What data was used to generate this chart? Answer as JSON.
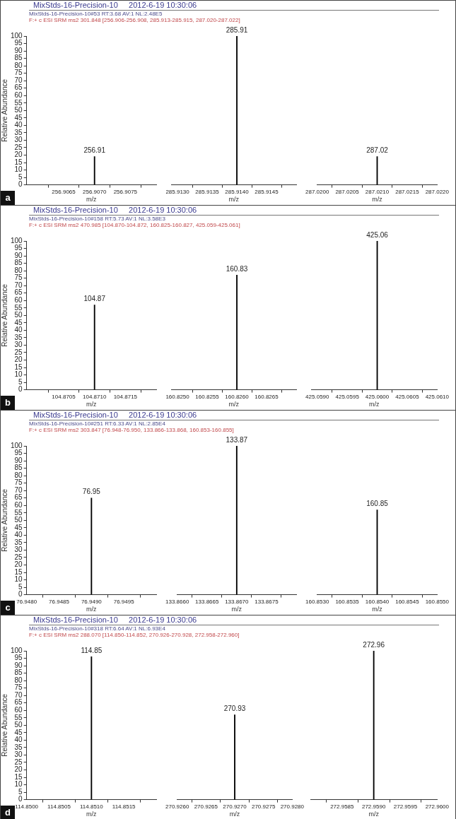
{
  "chart_data": [
    {
      "type": "bar",
      "title": "MixStds-16-Precision-10     2012-6-19 10:30:06",
      "subtitle": "MixStds-16-Precision-10#53 RT:3.68 AV:1 NL:2.48E5\nF:+ c ESI SRM ms2 301.848 [256.906-256.908, 285.913-285.915, 287.020-287.022]",
      "ylabel": "Relative Abundance",
      "xlabel": "m/z",
      "x": [
        256.907
      ],
      "values": [
        19
      ],
      "color": "#000000",
      "xlim": [
        256.9059,
        256.908
      ],
      "xticks": [
        256.9065,
        {
          "value": 256.907,
          "label": "256.9070"
        },
        256.9075
      ],
      "ylim": [
        0,
        100
      ],
      "yticks": [
        0,
        5,
        10,
        15,
        20,
        25,
        30,
        35,
        40,
        45,
        50,
        55,
        60,
        65,
        70,
        75,
        80,
        85,
        90,
        95,
        100
      ],
      "annotations": [
        {
          "text": "256.91",
          "x": 256.907,
          "y": 19
        },
        "a"
      ]
    },
    {
      "type": "bar",
      "xlabel": "m/z",
      "x": [
        285.914
      ],
      "values": [
        100
      ],
      "color": "#000000",
      "xlim": [
        285.9129,
        285.915
      ],
      "xticks": [
        {
          "value": 285.913,
          "label": "285.9130"
        },
        285.9135,
        {
          "value": 285.914,
          "label": "285.9140"
        },
        285.9145
      ],
      "ylim": [
        0,
        100
      ],
      "tick_labels": "x",
      "annotations": [
        {
          "text": "285.91",
          "x": 285.914,
          "y": 100
        }
      ]
    },
    {
      "type": "bar",
      "xlabel": "m/z",
      "x": [
        287.021
      ],
      "values": [
        19
      ],
      "color": "#000000",
      "xlim": [
        287.02,
        287.022
      ],
      "xticks": [
        {
          "value": 287.02,
          "label": "287.0200"
        },
        287.0205,
        {
          "value": 287.021,
          "label": "287.0210"
        },
        287.0215,
        {
          "value": 287.022,
          "label": "287.0220"
        }
      ],
      "ylim": [
        0,
        100
      ],
      "tick_labels": "x",
      "annotations": [
        {
          "text": "287.02",
          "x": 287.021,
          "y": 19
        }
      ]
    },
    {
      "type": "bar",
      "title": "MixStds-16-Precision-10     2012-6-19 10:30:06",
      "subtitle": "MixStds-16-Precision-10#158 RT:5.73 AV:1 NL:3.58E3\nF:+ c ESI SRM ms2 470.985 [104.870-104.872, 160.825-160.827, 425.059-425.061]",
      "ylabel": "Relative Abundance",
      "xlabel": "m/z",
      "x": [
        104.871
      ],
      "values": [
        57
      ],
      "color": "#000000",
      "xlim": [
        104.8699,
        104.872
      ],
      "xticks": [
        104.8705,
        {
          "value": 104.871,
          "label": "104.8710"
        },
        104.8715
      ],
      "ylim": [
        0,
        100
      ],
      "yticks": [
        0,
        5,
        10,
        15,
        20,
        25,
        30,
        35,
        40,
        45,
        50,
        55,
        60,
        65,
        70,
        75,
        80,
        85,
        90,
        95,
        100
      ],
      "annotations": [
        {
          "text": "104.87",
          "x": 104.871,
          "y": 57
        },
        "b"
      ]
    },
    {
      "type": "bar",
      "xlabel": "m/z",
      "x": [
        160.826
      ],
      "values": [
        77
      ],
      "color": "#000000",
      "xlim": [
        160.8249,
        160.827
      ],
      "xticks": [
        {
          "value": 160.825,
          "label": "160.8250"
        },
        160.8255,
        {
          "value": 160.826,
          "label": "160.8260"
        },
        160.8265
      ],
      "ylim": [
        0,
        100
      ],
      "tick_labels": "x",
      "annotations": [
        {
          "text": "160.83",
          "x": 160.826,
          "y": 77
        }
      ]
    },
    {
      "type": "bar",
      "xlabel": "m/z",
      "x": [
        425.06
      ],
      "values": [
        100
      ],
      "color": "#000000",
      "xlim": [
        425.0589,
        425.061
      ],
      "xticks": [
        {
          "value": 425.059,
          "label": "425.0590"
        },
        425.0595,
        {
          "value": 425.06,
          "label": "425.0600"
        },
        425.0605,
        {
          "value": 425.061,
          "label": "425.0610"
        }
      ],
      "ylim": [
        0,
        100
      ],
      "tick_labels": "x",
      "annotations": [
        {
          "text": "425.06",
          "x": 425.06,
          "y": 100
        }
      ]
    },
    {
      "type": "bar",
      "title": "MixStds-16-Precision-10     2012-6-19 10:30:06",
      "subtitle": "MixStds-16-Precision-10#251 RT:6.33 AV:1 NL:2.85E4\nF:+ c ESI SRM ms2 303.847 [76.948-76.950, 133.866-133.868, 160.853-160.855]",
      "ylabel": "Relative Abundance",
      "xlabel": "m/z",
      "x": [
        76.949
      ],
      "values": [
        65
      ],
      "color": "#000000",
      "xlim": [
        76.948,
        76.95
      ],
      "xticks": [
        {
          "value": 76.948,
          "label": "76.9480"
        },
        76.9485,
        {
          "value": 76.949,
          "label": "76.9490"
        },
        76.9495
      ],
      "ylim": [
        0,
        100
      ],
      "yticks": [
        0,
        5,
        10,
        15,
        20,
        25,
        30,
        35,
        40,
        45,
        50,
        55,
        60,
        65,
        70,
        75,
        80,
        85,
        90,
        95,
        100
      ],
      "annotations": [
        {
          "text": "76.95",
          "x": 76.949,
          "y": 65
        },
        "c"
      ]
    },
    {
      "type": "bar",
      "xlabel": "m/z",
      "x": [
        133.867
      ],
      "values": [
        100
      ],
      "color": "#000000",
      "xlim": [
        133.866,
        133.868
      ],
      "xticks": [
        {
          "value": 133.866,
          "label": "133.8660"
        },
        133.8665,
        {
          "value": 133.867,
          "label": "133.8670"
        },
        133.8675
      ],
      "ylim": [
        0,
        100
      ],
      "tick_labels": "x",
      "annotations": [
        {
          "text": "133.87",
          "x": 133.867,
          "y": 100
        }
      ]
    },
    {
      "type": "bar",
      "xlabel": "m/z",
      "x": [
        160.854
      ],
      "values": [
        57
      ],
      "color": "#000000",
      "xlim": [
        160.853,
        160.855
      ],
      "xticks": [
        {
          "value": 160.853,
          "label": "160.8530"
        },
        160.8535,
        {
          "value": 160.854,
          "label": "160.8540"
        },
        160.8545,
        {
          "value": 160.855,
          "label": "160.8550"
        }
      ],
      "ylim": [
        0,
        100
      ],
      "tick_labels": "x",
      "annotations": [
        {
          "text": "160.85",
          "x": 160.854,
          "y": 57
        }
      ]
    },
    {
      "type": "bar",
      "title": "MixStds-16-Precision-10     2012-6-19 10:30:06",
      "subtitle": "MixStds-16-Precision-10#318 RT:6.64 AV:1 NL:6.93E4\nF:+ c ESI SRM ms2 288.070 [114.850-114.852, 270.926-270.928, 272.958-272.960]",
      "ylabel": "Relative Abundance",
      "xlabel": "m/z",
      "x": [
        114.851
      ],
      "values": [
        96
      ],
      "color": "#000000",
      "xlim": [
        114.85,
        114.852
      ],
      "xticks": [
        {
          "value": 114.85,
          "label": "114.8500"
        },
        114.8505,
        {
          "value": 114.851,
          "label": "114.8510"
        },
        114.8515
      ],
      "ylim": [
        0,
        100
      ],
      "yticks": [
        0,
        5,
        10,
        15,
        20,
        25,
        30,
        35,
        40,
        45,
        50,
        55,
        60,
        65,
        70,
        75,
        80,
        85,
        90,
        95,
        100
      ],
      "annotations": [
        {
          "text": "114.85",
          "x": 114.851,
          "y": 96
        },
        "d"
      ]
    },
    {
      "type": "bar",
      "xlabel": "m/z",
      "x": [
        270.927
      ],
      "values": [
        57
      ],
      "color": "#000000",
      "xlim": [
        270.926,
        270.928
      ],
      "xticks": [
        {
          "value": 270.926,
          "label": "270.9260"
        },
        270.9265,
        {
          "value": 270.927,
          "label": "270.9270"
        },
        270.9275,
        {
          "value": 270.928,
          "label": "270.9280"
        }
      ],
      "ylim": [
        0,
        100
      ],
      "tick_labels": "x",
      "annotations": [
        {
          "text": "270.93",
          "x": 270.927,
          "y": 57
        }
      ]
    },
    {
      "type": "bar",
      "xlabel": "m/z",
      "x": [
        272.959
      ],
      "values": [
        100
      ],
      "color": "#000000",
      "xlim": [
        272.958,
        272.96
      ],
      "xticks": [
        272.9585,
        {
          "value": 272.959,
          "label": "272.9590"
        },
        272.9595,
        {
          "value": 272.96,
          "label": "272.9600"
        }
      ],
      "ylim": [
        0,
        100
      ],
      "tick_labels": "x",
      "annotations": [
        {
          "text": "272.96",
          "x": 272.959,
          "y": 100
        }
      ]
    }
  ]
}
